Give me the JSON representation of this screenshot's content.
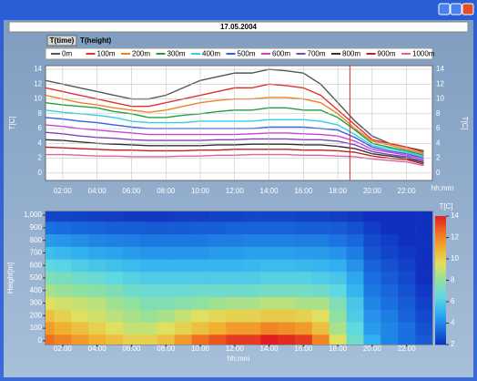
{
  "window": {
    "title": "17.05.2004",
    "tabs": [
      "T(time)",
      "T(height)"
    ]
  },
  "chart_data": [
    {
      "type": "line",
      "x_label": "hh:mm",
      "y_label": "T[C]",
      "grid": true,
      "x": [
        1,
        2,
        3,
        4,
        5,
        6,
        7,
        8,
        9,
        10,
        11,
        12,
        13,
        14,
        15,
        16,
        17,
        18,
        19,
        20,
        21,
        22,
        23
      ],
      "xlim": [
        1,
        23.5
      ],
      "xticks": [
        {
          "value": 2,
          "label": "02:00"
        },
        {
          "value": 4,
          "label": "04:00"
        },
        {
          "value": 6,
          "label": "06:00"
        },
        {
          "value": 8,
          "label": "08:00"
        },
        {
          "value": 10,
          "label": "10:00"
        },
        {
          "value": 12,
          "label": "12:00"
        },
        {
          "value": 14,
          "label": "14:00"
        },
        {
          "value": 16,
          "label": "16:00"
        },
        {
          "value": 18,
          "label": "18:00"
        },
        {
          "value": 20,
          "label": "20:00"
        },
        {
          "value": 22,
          "label": "22:00"
        }
      ],
      "ylim": [
        -1,
        14.5
      ],
      "yticks": [
        0,
        2,
        4,
        6,
        8,
        10,
        12,
        14
      ],
      "marker_x": 18.7,
      "marker_color": "#e02020",
      "series": [
        {
          "name": "0m",
          "color": "#555555",
          "values": [
            12.5,
            12,
            11.5,
            11,
            10.5,
            10,
            10,
            10.5,
            11.5,
            12.5,
            13,
            13.5,
            13.5,
            14,
            13.8,
            13.5,
            12,
            9.5,
            7,
            5,
            4,
            3.5,
            3
          ]
        },
        {
          "name": "100m",
          "color": "#e03030",
          "values": [
            11.5,
            11,
            10.5,
            10,
            9.5,
            9,
            9,
            9.5,
            10,
            10.5,
            11,
            11.5,
            11.5,
            12,
            11.8,
            11.5,
            10.5,
            8.5,
            6.5,
            4.5,
            4,
            3.5,
            2.8
          ]
        },
        {
          "name": "200m",
          "color": "#f08020",
          "values": [
            10.5,
            10,
            9.5,
            9.2,
            8.8,
            8.5,
            8.2,
            8.5,
            9,
            9.5,
            9.8,
            10,
            10,
            10.2,
            10.2,
            10,
            9.5,
            8,
            6,
            4.3,
            3.8,
            3.2,
            2.6
          ]
        },
        {
          "name": "300m",
          "color": "#20a040",
          "values": [
            9.5,
            9.2,
            9,
            8.8,
            8.3,
            8,
            7.5,
            7.5,
            7.8,
            8,
            8.3,
            8.5,
            8.5,
            8.8,
            8.8,
            8.5,
            8.5,
            7.5,
            5.8,
            4,
            3.5,
            3,
            2.4
          ]
        },
        {
          "name": "400m",
          "color": "#30d0e0",
          "values": [
            8.5,
            8.2,
            8,
            7.8,
            7.5,
            7,
            6.8,
            6.8,
            6.8,
            7,
            7,
            7,
            7,
            7.2,
            7.2,
            7.2,
            7,
            6.5,
            5.2,
            3.7,
            3.3,
            2.8,
            2.2
          ]
        },
        {
          "name": "500m",
          "color": "#3060e0",
          "values": [
            7.5,
            7.3,
            7,
            6.8,
            6.5,
            6.2,
            6,
            6,
            6,
            6,
            6,
            6,
            6,
            6.2,
            6.2,
            6.2,
            6,
            5.8,
            4.8,
            3.5,
            3,
            2.6,
            2
          ]
        },
        {
          "name": "600m",
          "color": "#d040d0",
          "values": [
            6.5,
            6.3,
            6,
            5.8,
            5.6,
            5.4,
            5.2,
            5.2,
            5.2,
            5.2,
            5.2,
            5.2,
            5.3,
            5.4,
            5.4,
            5.3,
            5.2,
            5,
            4.3,
            3.2,
            2.8,
            2.4,
            1.8
          ]
        },
        {
          "name": "700m",
          "color": "#8040c0",
          "values": [
            5.5,
            5.3,
            5,
            4.8,
            4.7,
            4.5,
            4.4,
            4.4,
            4.4,
            4.4,
            4.5,
            4.5,
            4.6,
            4.6,
            4.6,
            4.5,
            4.5,
            4.3,
            3.8,
            2.9,
            2.5,
            2.2,
            1.6
          ]
        },
        {
          "name": "800m",
          "color": "#303030",
          "values": [
            4.5,
            4.4,
            4.2,
            4,
            3.9,
            3.8,
            3.7,
            3.7,
            3.7,
            3.7,
            3.8,
            3.8,
            3.9,
            3.9,
            3.9,
            3.8,
            3.8,
            3.6,
            3.3,
            2.6,
            2.3,
            2,
            1.4
          ]
        },
        {
          "name": "900m",
          "color": "#c02020",
          "values": [
            3.5,
            3.4,
            3.3,
            3.2,
            3.1,
            3.1,
            3,
            3,
            3,
            3.1,
            3.1,
            3.2,
            3.2,
            3.2,
            3.2,
            3.1,
            3.1,
            3,
            2.8,
            2.3,
            2,
            1.8,
            1.2
          ]
        },
        {
          "name": "1000m",
          "color": "#e060a0",
          "values": [
            2.5,
            2.5,
            2.4,
            2.3,
            2.3,
            2.2,
            2.2,
            2.2,
            2.3,
            2.3,
            2.4,
            2.4,
            2.5,
            2.5,
            2.5,
            2.4,
            2.4,
            2.3,
            2.2,
            1.9,
            1.7,
            1.5,
            1
          ]
        }
      ]
    },
    {
      "type": "heatmap",
      "y_label": "Height[m]",
      "colorbar_label": "T[C]",
      "y": [
        0,
        100,
        200,
        300,
        400,
        500,
        600,
        700,
        800,
        900,
        1000
      ],
      "ylim": [
        -30,
        1030
      ],
      "yticks": [
        0,
        100,
        200,
        300,
        400,
        500,
        600,
        700,
        800,
        900,
        {
          "value": 1000,
          "label": "1,000"
        }
      ],
      "clim": [
        2,
        14
      ],
      "cticks": [
        2,
        4,
        6,
        8,
        10,
        12,
        14
      ],
      "colormap": [
        "#1030c0",
        "#1a70e0",
        "#30b0f0",
        "#60d8e0",
        "#90e0a0",
        "#e0e060",
        "#f0b030",
        "#f07020",
        "#e02020"
      ]
    }
  ]
}
